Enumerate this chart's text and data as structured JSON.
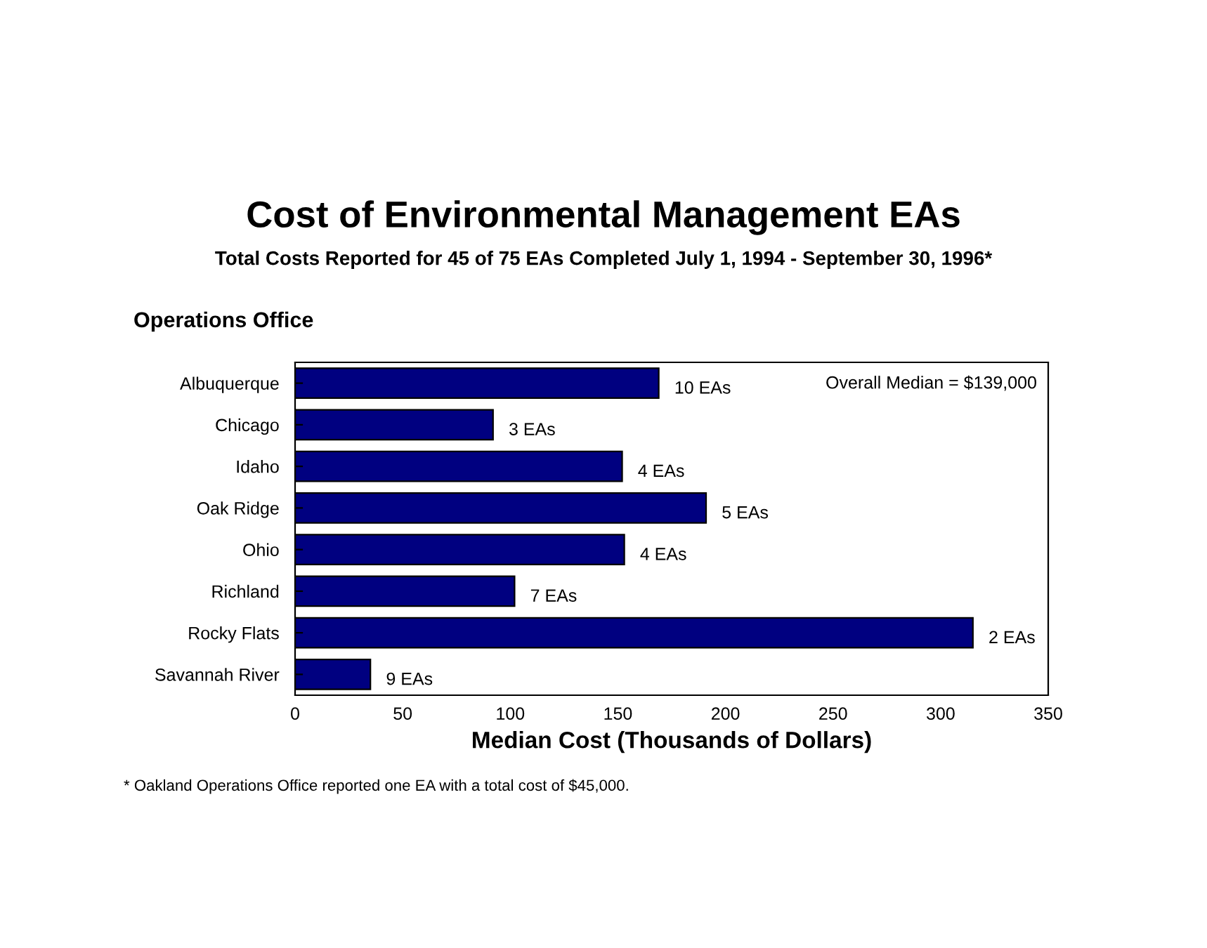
{
  "chart_data": {
    "type": "bar",
    "orientation": "horizontal",
    "title": "Cost of Environmental Management EAs",
    "subtitle": "Total Costs Reported for 45 of 75 EAs Completed July 1, 1994 - September 30, 1996*",
    "ylabel": "Operations Office",
    "xlabel": "Median Cost (Thousands of Dollars)",
    "categories": [
      "Albuquerque",
      "Chicago",
      "Idaho",
      "Oak Ridge",
      "Ohio",
      "Richland",
      "Rocky Flats",
      "Savannah River"
    ],
    "values": [
      169,
      92,
      152,
      191,
      153,
      102,
      315,
      35
    ],
    "color": "#000080",
    "xlim": [
      0,
      350
    ],
    "xticks": [
      0,
      50,
      100,
      150,
      200,
      250,
      300,
      350
    ],
    "annotations": [
      {
        "text": "10 EAs",
        "x": 169,
        "y": "Albuquerque"
      },
      {
        "text": "3 EAs",
        "x": 92,
        "y": "Chicago"
      },
      {
        "text": "4 EAs",
        "x": 152,
        "y": "Idaho"
      },
      {
        "text": "5 EAs",
        "x": 191,
        "y": "Oak Ridge"
      },
      {
        "text": "4 EAs",
        "x": 153,
        "y": "Ohio"
      },
      {
        "text": "7 EAs",
        "x": 102,
        "y": "Richland"
      },
      {
        "text": "2 EAs",
        "x": 315,
        "y": "Rocky Flats"
      },
      {
        "text": "9 EAs",
        "x": 35,
        "y": "Savannah River"
      },
      "Overall Median = $139,000",
      "* Oakland Operations Office reported one EA with a total cost of $45,000."
    ]
  }
}
